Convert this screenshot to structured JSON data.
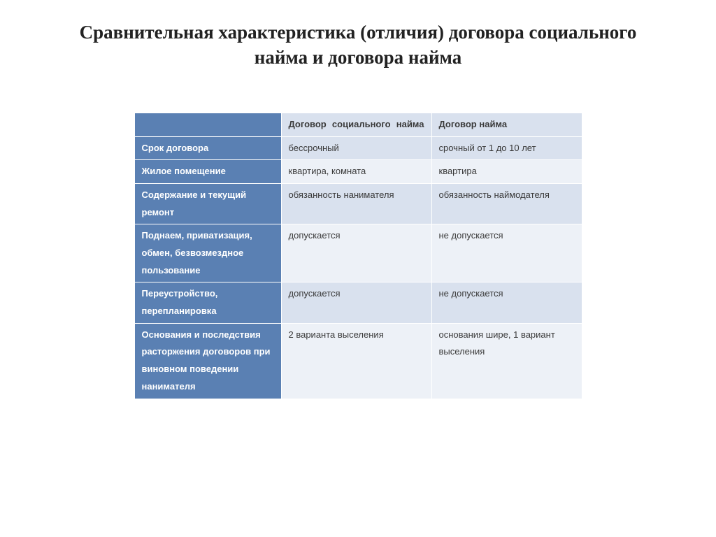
{
  "title": "Сравнительная характеристика (отличия) договора социального найма и договора найма",
  "table": {
    "type": "table",
    "header_bg": "#5a80b3",
    "header_text_color": "#ffffff",
    "data_bg_odd": "#d9e1ee",
    "data_bg_even": "#edf1f7",
    "border_color": "#ffffff",
    "font_size": 13,
    "columns": {
      "label": "",
      "col_a": "Договор социального найма",
      "col_b": "Договор найма"
    },
    "rows": [
      {
        "label": "Срок договора",
        "a": "бессрочный",
        "b": "срочный от 1 до 10 лет"
      },
      {
        "label": "Жилое помещение",
        "a": "квартира, комната",
        "b": "квартира"
      },
      {
        "label": "Содержание и текущий ремонт",
        "a": "обязанность нанимателя",
        "b": "обязанность наймодателя"
      },
      {
        "label": "Поднаем, приватизация, обмен, безвозмездное пользование",
        "a": "допускается",
        "b": "не допускается"
      },
      {
        "label": "Переустройство, перепланировка",
        "a": "допускается",
        "b": "не допускается"
      },
      {
        "label": "Основания и последствия расторжения договоров при виновном поведении нанимателя",
        "a": "2 варианта выселения",
        "b": "основания шире, 1 вариант выселения"
      }
    ]
  }
}
